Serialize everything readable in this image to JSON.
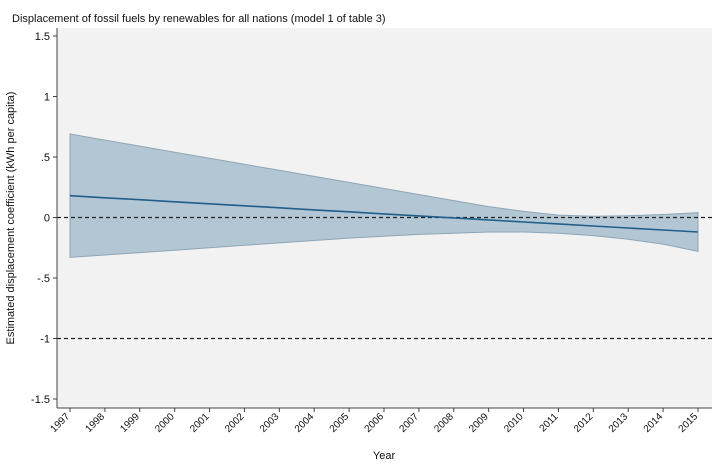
{
  "chart_data": {
    "type": "line",
    "title": "Displacement of fossil fuels by renewables for all nations (model 1 of table 3)",
    "xlabel": "Year",
    "ylabel": "Estimated displacement coefficient (kWh per capita)",
    "x": [
      1997,
      1998,
      1999,
      2000,
      2001,
      2002,
      2003,
      2004,
      2005,
      2006,
      2007,
      2008,
      2009,
      2010,
      2011,
      2012,
      2013,
      2014,
      2015
    ],
    "xlim": [
      1997,
      2015
    ],
    "ylim": [
      -1.5,
      1.5
    ],
    "yticks": [
      1.5,
      1,
      0.5,
      0,
      -0.5,
      -1,
      -1.5
    ],
    "ytick_labels": [
      "1.5",
      "1",
      ".5",
      "0",
      "-.5",
      "-1",
      "-1.5"
    ],
    "series": [
      {
        "values": [
          0.18,
          0.163,
          0.147,
          0.13,
          0.113,
          0.097,
          0.08,
          0.063,
          0.047,
          0.03,
          0.013,
          -0.003,
          -0.02,
          -0.037,
          -0.053,
          -0.07,
          -0.087,
          -0.103,
          -0.12
        ],
        "ci_upper": [
          0.69,
          0.64,
          0.59,
          0.54,
          0.49,
          0.44,
          0.39,
          0.34,
          0.29,
          0.24,
          0.19,
          0.14,
          0.09,
          0.05,
          0.02,
          0.01,
          0.015,
          0.025,
          0.04
        ],
        "ci_lower": [
          -0.33,
          -0.31,
          -0.29,
          -0.27,
          -0.25,
          -0.23,
          -0.21,
          -0.19,
          -0.17,
          -0.155,
          -0.14,
          -0.13,
          -0.12,
          -0.12,
          -0.13,
          -0.15,
          -0.18,
          -0.22,
          -0.28
        ]
      }
    ],
    "reference_lines": [
      0,
      -1
    ],
    "grid": false,
    "colors": {
      "line": "#1f5f8b",
      "band": "#b3c6d3",
      "band_edge": "#8ea6b8",
      "plot_bg": "#f2f2f2",
      "reference": "#222222"
    }
  }
}
